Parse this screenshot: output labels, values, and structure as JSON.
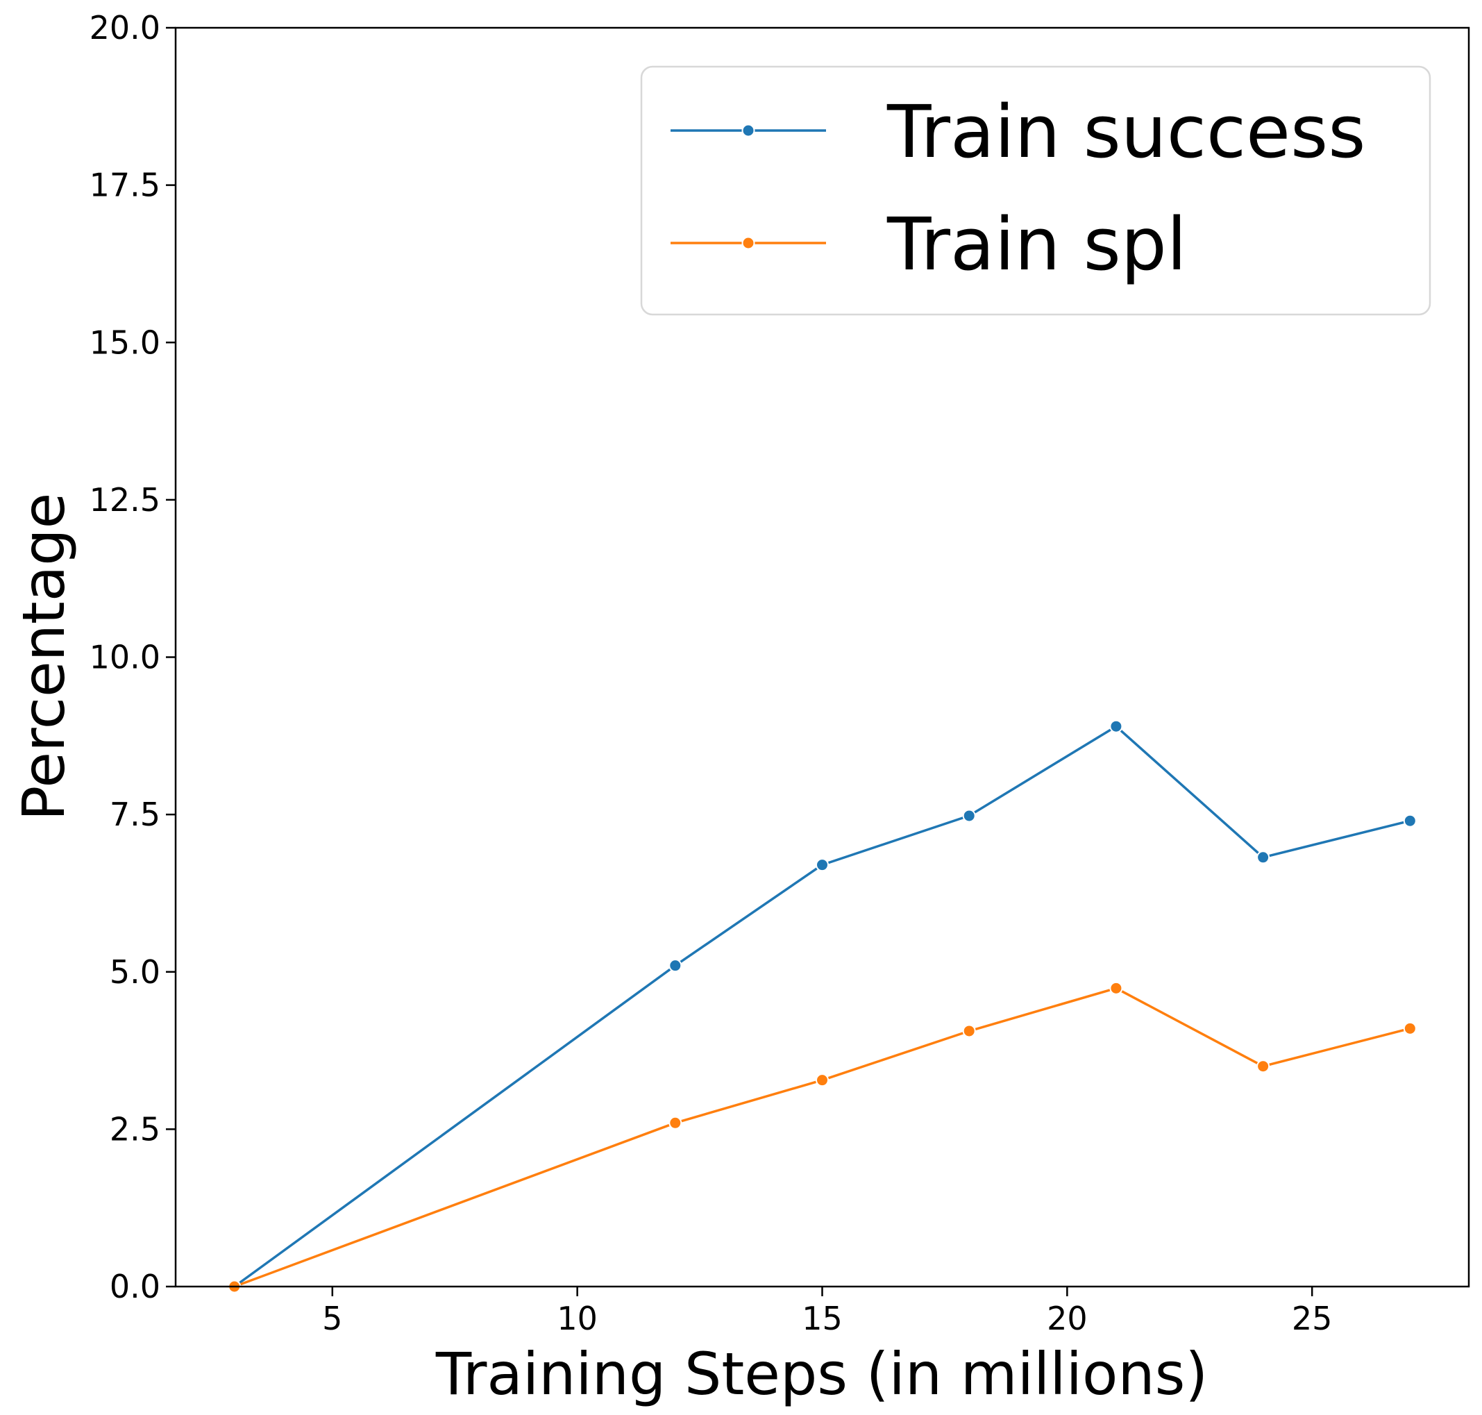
{
  "chart_data": {
    "type": "line",
    "x": [
      3,
      12,
      15,
      18,
      21,
      24,
      27
    ],
    "series": [
      {
        "name": "Train success",
        "color": "#1f77b4",
        "values": [
          0.0,
          5.1,
          6.7,
          7.48,
          8.9,
          6.82,
          7.4
        ]
      },
      {
        "name": "Train spl",
        "color": "#ff7f0e",
        "values": [
          0.0,
          2.6,
          3.28,
          4.06,
          4.74,
          3.5,
          4.1
        ]
      }
    ],
    "xlabel": "Training Steps (in millions)",
    "ylabel": "Percentage",
    "xlim": [
      1.8,
      28.2
    ],
    "ylim": [
      0.0,
      20.0
    ],
    "x_ticks": [
      5,
      10,
      15,
      20,
      25
    ],
    "y_ticks": [
      0.0,
      2.5,
      5.0,
      7.5,
      10.0,
      12.5,
      15.0,
      17.5,
      20.0
    ],
    "x_tick_labels": [
      "5",
      "10",
      "15",
      "20",
      "25"
    ],
    "y_tick_labels": [
      "0.0",
      "2.5",
      "5.0",
      "7.5",
      "10.0",
      "12.5",
      "15.0",
      "17.5",
      "20.0"
    ],
    "legend_position": "top-right",
    "grid": false
  }
}
